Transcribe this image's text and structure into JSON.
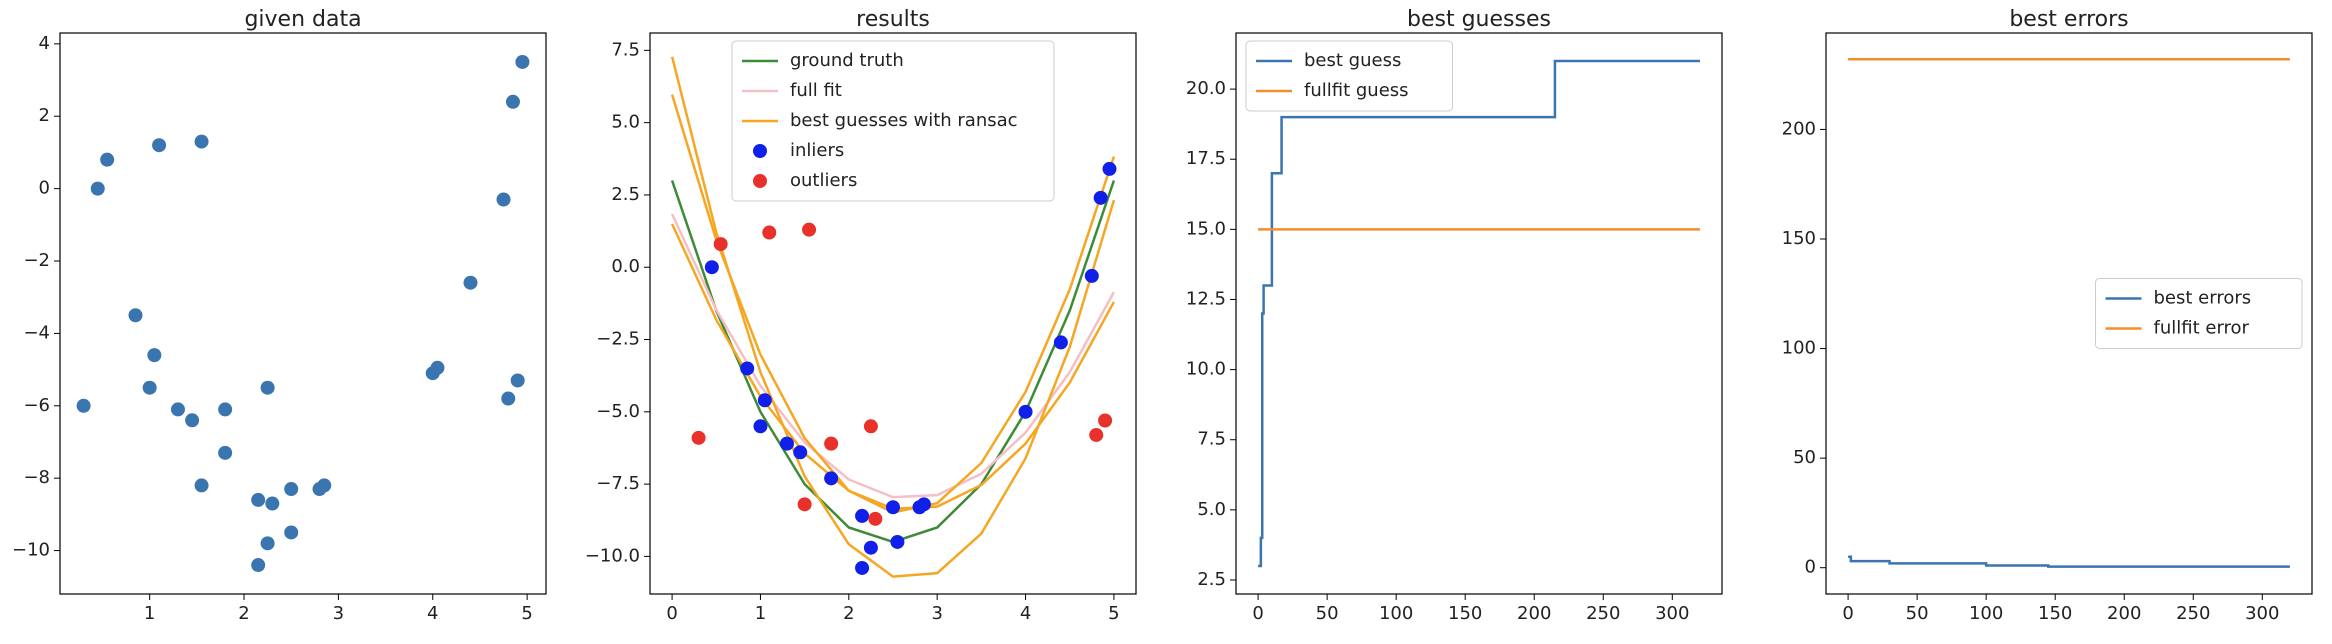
{
  "chart_data": [
    {
      "type": "scatter",
      "title": "given data",
      "color": "#3a75b0",
      "x": [
        0.3,
        0.45,
        0.55,
        1.1,
        1.55,
        0.85,
        1.05,
        1.0,
        1.3,
        1.45,
        1.8,
        1.8,
        1.55,
        2.25,
        2.15,
        2.3,
        2.15,
        2.25,
        2.5,
        2.5,
        2.8,
        2.85,
        4.0,
        4.05,
        4.4,
        4.75,
        4.85,
        4.95,
        4.8,
        4.9
      ],
      "values": [
        -6.0,
        0.0,
        0.8,
        1.2,
        1.3,
        -3.5,
        -4.6,
        -5.5,
        -6.1,
        -6.4,
        -6.1,
        -7.3,
        -8.2,
        -5.5,
        -8.6,
        -8.7,
        -10.4,
        -9.8,
        -8.3,
        -9.5,
        -8.3,
        -8.2,
        -5.1,
        -4.95,
        -2.6,
        -0.3,
        2.4,
        3.5,
        -5.8,
        -5.3
      ],
      "xlim": [
        0.05,
        5.2
      ],
      "xticks": [
        1,
        2,
        3,
        4,
        5
      ],
      "ylim": [
        -11.2,
        4.3
      ],
      "yticks": [
        {
          "value": -10,
          "label": "−10"
        },
        {
          "value": -8,
          "label": "−8"
        },
        {
          "value": -6,
          "label": "−6"
        },
        {
          "value": -4,
          "label": "−4"
        },
        {
          "value": -2,
          "label": "−2"
        },
        0,
        2,
        4
      ]
    },
    {
      "type": "line",
      "title": "results",
      "legend": "upper center",
      "series": [
        {
          "name": "ground truth",
          "type": "line",
          "color": "#3d8b37",
          "x": [
            0,
            0.5,
            1,
            1.5,
            2,
            2.5,
            3,
            3.5,
            4,
            4.5,
            5
          ],
          "values": [
            3,
            -1.5,
            -5,
            -7.5,
            -9,
            -9.5,
            -9,
            -7.5,
            -5,
            -1.5,
            3
          ]
        },
        {
          "name": "full fit",
          "type": "line",
          "color": "#f4bfc6",
          "x": [
            0,
            0.5,
            1,
            1.5,
            2,
            2.5,
            3,
            3.5,
            4,
            4.5,
            5
          ],
          "values": [
            1.84,
            -1.47,
            -4.1,
            -6.06,
            -7.34,
            -7.95,
            -7.88,
            -7.14,
            -5.72,
            -3.63,
            -0.86
          ]
        },
        {
          "name": "best guesses with ransac",
          "type": "line",
          "color": "#f5a623",
          "x": [
            0,
            0.5,
            1,
            1.5,
            2,
            2.5,
            3,
            3.5,
            4,
            4.5,
            5
          ],
          "values": [
            [
              7.28,
              1.2,
              -3.63,
              -7.23,
              -9.58,
              -10.7,
              -10.58,
              -9.21,
              -6.61,
              -2.76,
              2.32
            ],
            [
              5.97,
              0.94,
              -3.02,
              -5.91,
              -7.73,
              -8.48,
              -8.16,
              -6.77,
              -4.31,
              -0.77,
              3.83
            ],
            [
              1.5,
              -1.82,
              -4.47,
              -6.44,
              -7.73,
              -8.35,
              -8.28,
              -7.53,
              -6.1,
              -3.99,
              -1.2
            ]
          ]
        },
        {
          "name": "inliers",
          "type": "scatter",
          "color": "#1020e8",
          "x": [
            0.45,
            0.85,
            1.05,
            1.0,
            1.3,
            1.45,
            1.8,
            2.15,
            2.25,
            2.15,
            2.5,
            2.55,
            2.8,
            2.85,
            4.0,
            4.4,
            4.75,
            4.85,
            4.95
          ],
          "values": [
            0.0,
            -3.5,
            -4.6,
            -5.5,
            -6.1,
            -6.4,
            -7.3,
            -8.6,
            -9.7,
            -10.4,
            -8.3,
            -9.5,
            -8.3,
            -8.2,
            -5.0,
            -2.6,
            -0.3,
            2.4,
            3.4
          ]
        },
        {
          "name": "outliers",
          "type": "scatter",
          "color": "#e8312a",
          "x": [
            0.3,
            0.55,
            1.1,
            1.55,
            1.8,
            1.5,
            2.25,
            2.3,
            4.8,
            4.9
          ],
          "values": [
            -5.9,
            0.8,
            1.2,
            1.3,
            -6.1,
            -8.2,
            -5.5,
            -8.7,
            -5.8,
            -5.3
          ]
        }
      ],
      "xlim": [
        -0.25,
        5.25
      ],
      "xticks": [
        0,
        1,
        2,
        3,
        4,
        5
      ],
      "ylim": [
        -11.3,
        8.1
      ],
      "yticks": [
        {
          "value": -10,
          "label": "−10.0"
        },
        {
          "value": -7.5,
          "label": "−7.5"
        },
        {
          "value": -5,
          "label": "−5.0"
        },
        {
          "value": -2.5,
          "label": "−2.5"
        },
        {
          "value": 0,
          "label": "0.0"
        },
        2.5,
        {
          "value": 5,
          "label": "5.0"
        },
        7.5
      ]
    },
    {
      "type": "line",
      "title": "best guesses",
      "legend": "upper left",
      "series": [
        {
          "name": "best guess",
          "type": "line",
          "color": "#3a75b0",
          "x": [
            0,
            2,
            2,
            3,
            3,
            4,
            4,
            10,
            10,
            17,
            17,
            215,
            215,
            320
          ],
          "values": [
            3,
            3,
            4,
            4,
            12,
            12,
            13,
            13,
            17,
            17,
            19,
            19,
            21,
            21
          ]
        },
        {
          "name": "fullfit guess",
          "type": "line",
          "color": "#f28e2b",
          "x": [
            0,
            320
          ],
          "values": [
            15,
            15
          ]
        }
      ],
      "xlim": [
        -16,
        336
      ],
      "xticks": [
        0,
        50,
        100,
        150,
        200,
        250,
        300
      ],
      "ylim": [
        2.0,
        22.0
      ],
      "yticks": [
        2.5,
        {
          "value": 5,
          "label": "5.0"
        },
        7.5,
        {
          "value": 10,
          "label": "10.0"
        },
        12.5,
        {
          "value": 15,
          "label": "15.0"
        },
        17.5,
        {
          "value": 20,
          "label": "20.0"
        }
      ]
    },
    {
      "type": "line",
      "title": "best errors",
      "legend": "center right",
      "series": [
        {
          "name": "best errors",
          "type": "line",
          "color": "#3a75b0",
          "x": [
            0,
            2,
            2,
            30,
            30,
            100,
            100,
            145,
            145,
            320
          ],
          "values": [
            5,
            5,
            3,
            3,
            2,
            2,
            1,
            1,
            0.5,
            0.5
          ]
        },
        {
          "name": "fullfit error",
          "type": "line",
          "color": "#f28e2b",
          "x": [
            0,
            320
          ],
          "values": [
            232,
            232
          ]
        }
      ],
      "xlim": [
        -16,
        336
      ],
      "xticks": [
        0,
        50,
        100,
        150,
        200,
        250,
        300
      ],
      "ylim": [
        -12,
        244
      ],
      "yticks": [
        0,
        50,
        100,
        150,
        200
      ]
    }
  ]
}
